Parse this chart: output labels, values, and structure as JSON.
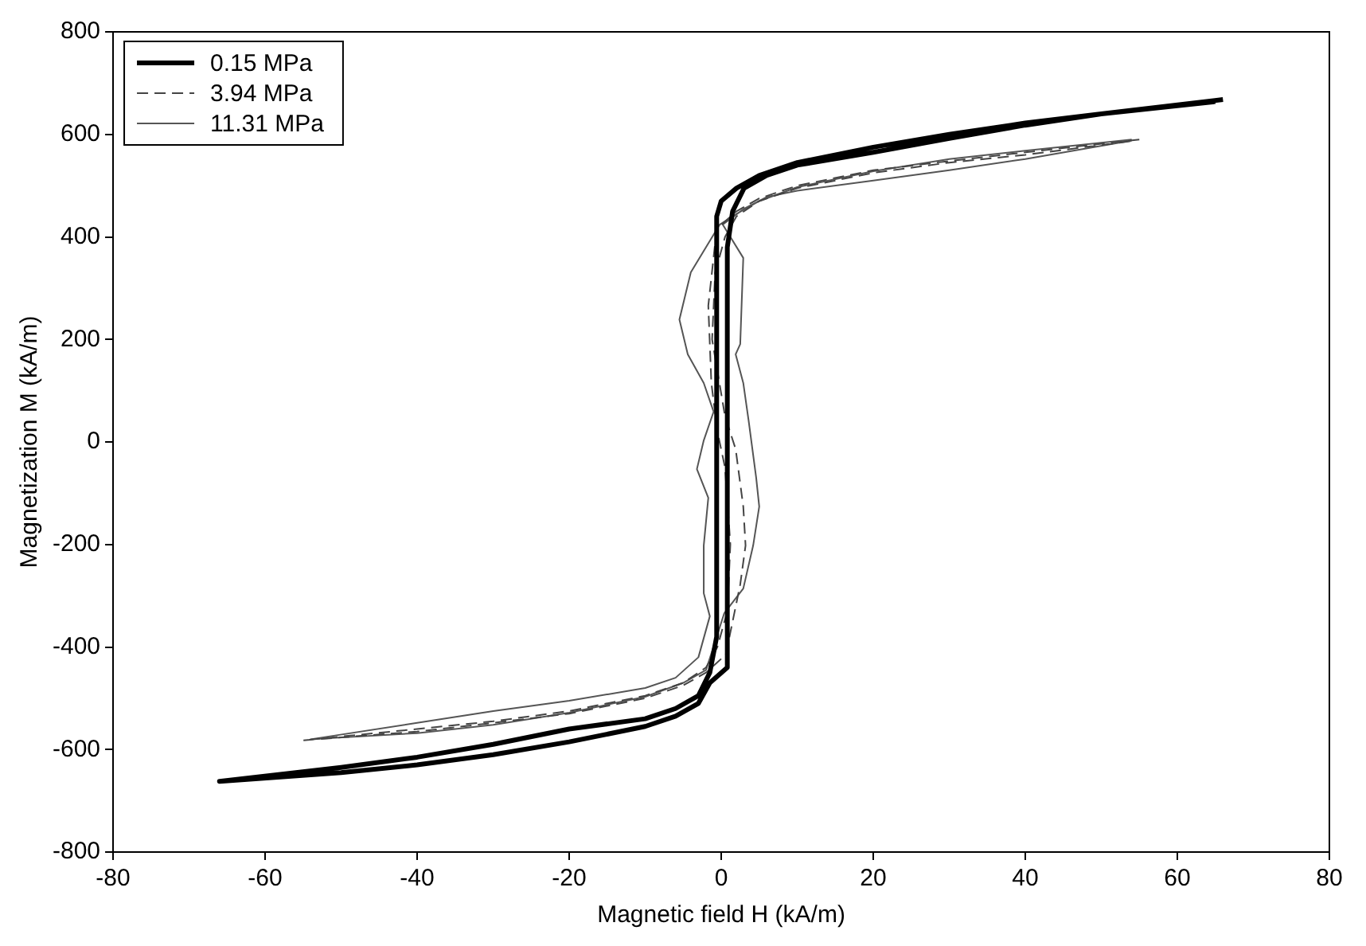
{
  "chart_data": {
    "type": "line",
    "xlabel": "Magnetic field H (kA/m)",
    "ylabel": "Magnetization M (kA/m)",
    "xlim": [
      -80,
      80
    ],
    "xticks": [
      -80,
      -60,
      -40,
      -20,
      0,
      20,
      40,
      60,
      80
    ],
    "ylim": [
      -800,
      800
    ],
    "yticks": [
      -800,
      -600,
      -400,
      -200,
      0,
      200,
      400,
      600,
      800
    ],
    "grid": false,
    "legend": "top left",
    "marker": "none",
    "series": [
      {
        "name": "0.15 MPa",
        "color": "#000000",
        "line_style": "solid",
        "x": [
          66,
          50,
          40,
          30,
          20,
          10,
          5,
          2,
          0,
          -0.6,
          -0.6,
          -1.5,
          -3,
          -6,
          -10,
          -20,
          -30,
          -40,
          -50,
          -66,
          -50,
          -40,
          -30,
          -20,
          -10,
          -6,
          -3,
          -1.5,
          0.8,
          0.8,
          1.5,
          3,
          6,
          10,
          20,
          30,
          40,
          50,
          65
        ],
        "values": [
          668,
          640,
          622,
          600,
          575,
          545,
          520,
          495,
          470,
          440,
          -380,
          -450,
          -495,
          -520,
          -540,
          -560,
          -590,
          -615,
          -635,
          -662,
          -645,
          -630,
          -610,
          -585,
          -555,
          -535,
          -510,
          -470,
          -440,
          380,
          450,
          495,
          520,
          540,
          565,
          592,
          618,
          640,
          664
        ]
      },
      {
        "name": "3.94 MPa",
        "color": "#444444",
        "line_style": "dashed",
        "x": [
          55,
          40,
          30,
          20,
          10,
          5,
          2,
          -0.6,
          -1.7,
          -1.3,
          -0.5,
          0.5,
          1.2,
          0.8,
          -0.5,
          -2,
          -5,
          -10,
          -20,
          -30,
          -40,
          -55,
          -40,
          -30,
          -20,
          -10,
          -5,
          -2,
          0.6,
          2.5,
          3.2,
          2.9,
          1.9,
          0.5,
          -1.2,
          -0.8,
          0.5,
          2,
          5,
          10,
          20,
          30,
          40,
          54
        ],
        "values": [
          590,
          565,
          548,
          530,
          500,
          475,
          450,
          415,
          266,
          115,
          20,
          -50,
          -200,
          -330,
          -400,
          -440,
          -470,
          -495,
          -525,
          -545,
          -560,
          -582,
          -565,
          -548,
          -530,
          -500,
          -475,
          -450,
          -415,
          -278,
          -202,
          -126,
          -14,
          50,
          200,
          330,
          400,
          440,
          470,
          495,
          525,
          545,
          560,
          587
        ]
      },
      {
        "name": "11.31 MPa",
        "color": "#555555",
        "line_style": "solid",
        "x": [
          54,
          40,
          30,
          20,
          10,
          5,
          2,
          -0.2,
          -4,
          -5.5,
          -4.4,
          -2.3,
          -1,
          -2.3,
          -3.2,
          -1.7,
          -2.3,
          -2.3,
          -1.5,
          -3,
          -6,
          -10,
          -20,
          -30,
          -40,
          -54,
          -40,
          -30,
          -20,
          -10,
          -5,
          -2,
          0.4,
          2.9,
          4.2,
          5,
          4.6,
          3.6,
          2.9,
          1.9,
          2.5,
          2.9,
          0.2,
          3,
          6,
          10,
          20,
          30,
          40,
          54
        ],
        "values": [
          590,
          568,
          552,
          528,
          497,
          470,
          445,
          424,
          331,
          239,
          171,
          115,
          59,
          3,
          -53,
          -109,
          -202,
          -295,
          -340,
          -420,
          -460,
          -480,
          -505,
          -525,
          -548,
          -580,
          -568,
          -552,
          -528,
          -497,
          -470,
          -445,
          -334,
          -286,
          -202,
          -126,
          -70,
          42,
          115,
          171,
          191,
          359,
          424,
          455,
          478,
          490,
          510,
          530,
          552,
          588
        ]
      }
    ]
  }
}
